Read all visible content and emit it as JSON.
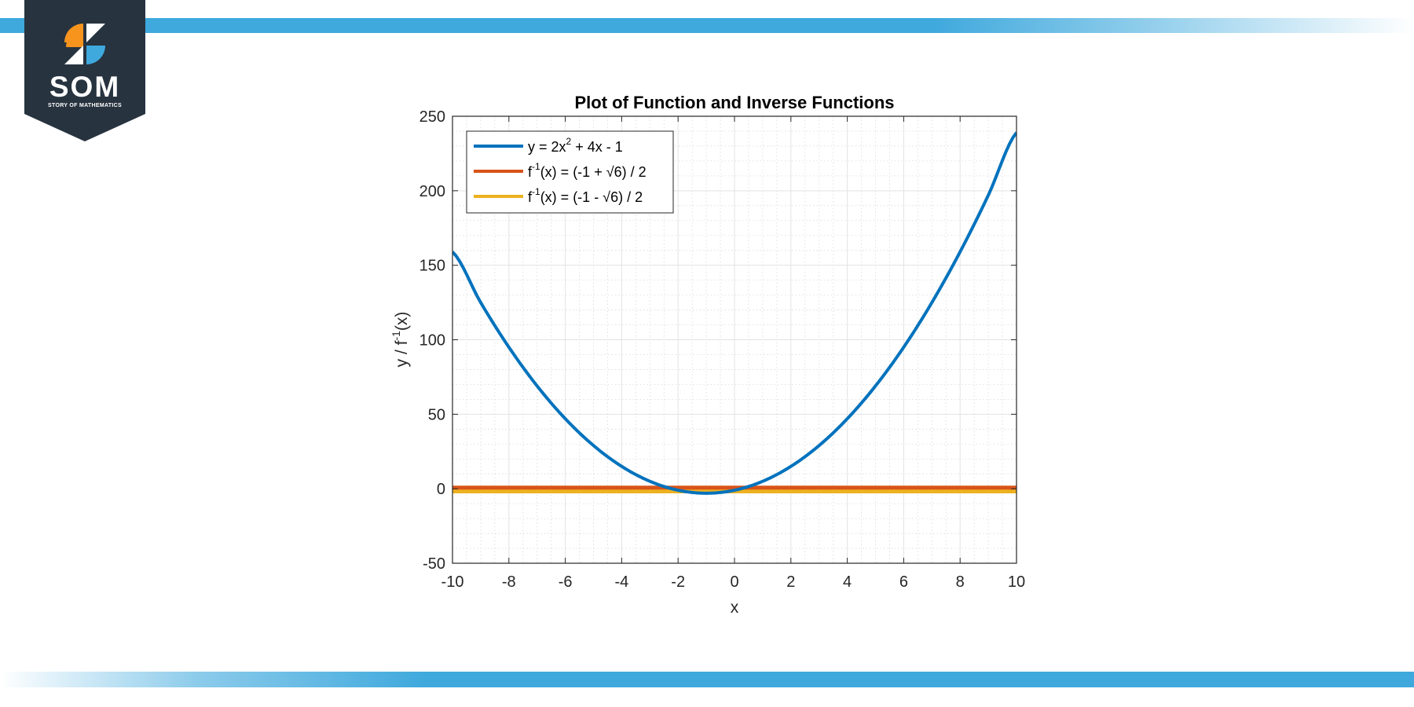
{
  "brand": {
    "logo_text": "SOM",
    "logo_subtext": "STORY OF MATHEMATICS",
    "colors": {
      "band": "#3fa9dd",
      "badge": "#27333f",
      "orange": "#f7941d",
      "blue": "#3fa9dd"
    }
  },
  "chart_data": {
    "type": "line",
    "title": "Plot of Function and Inverse Functions",
    "xlabel": "x",
    "ylabel": {
      "pre": "y / f",
      "sup": "-1",
      "post": "(x)"
    },
    "xlim": [
      -10,
      10
    ],
    "ylim": [
      -50,
      250
    ],
    "xticks": [
      "-10",
      "-8",
      "-6",
      "-4",
      "-2",
      "0",
      "2",
      "4",
      "6",
      "8",
      "10"
    ],
    "yticks": [
      "-50",
      "0",
      "50",
      "100",
      "150",
      "200",
      "250"
    ],
    "grid": true,
    "minor_grid": true,
    "legend_position": "top-left",
    "series": [
      {
        "key": "quadratic",
        "color": "#0072bd",
        "label": {
          "pre": "y = 2x",
          "sup": "2",
          "post": " + 4x - 1"
        },
        "x": [
          -10,
          -9,
          -8,
          -7,
          -6,
          -5,
          -4,
          -3,
          -2,
          -1,
          0,
          1,
          2,
          3,
          4,
          5,
          6,
          7,
          8,
          9,
          10
        ],
        "y": [
          159,
          125,
          95,
          69,
          47,
          29,
          15,
          5,
          -1,
          -3,
          -1,
          5,
          15,
          29,
          47,
          69,
          95,
          125,
          159,
          197,
          239
        ]
      },
      {
        "key": "inverse-plus",
        "color": "#d95319",
        "label": {
          "pre": "f",
          "sup": "-1",
          "post": "(x) = (-1 + √6) / 2"
        },
        "x": [
          -10,
          10
        ],
        "y": [
          0.7247,
          0.7247
        ]
      },
      {
        "key": "inverse-minus",
        "color": "#edb120",
        "label": {
          "pre": "f",
          "sup": "-1",
          "post": "(x) = (-1 - √6) / 2"
        },
        "x": [
          -10,
          10
        ],
        "y": [
          -1.7247,
          -1.7247
        ]
      }
    ]
  }
}
